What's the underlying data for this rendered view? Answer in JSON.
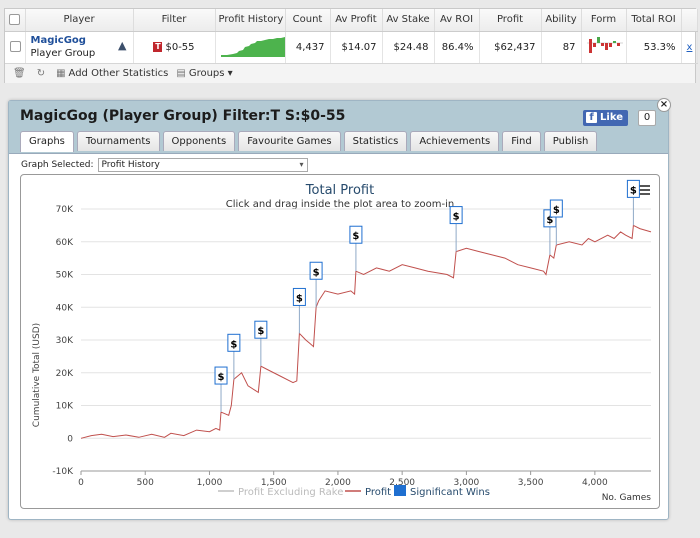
{
  "stats_table": {
    "headers": [
      "Player",
      "Filter",
      "Profit History",
      "Count",
      "Av Profit",
      "Av Stake",
      "Av ROI",
      "Profit",
      "Ability",
      "Form",
      "Total ROI"
    ],
    "row": {
      "player_name": "MagicGog",
      "player_type": "Player Group",
      "filter": "$0-55",
      "filter_badge": "T",
      "count": "4,437",
      "av_profit": "$14.07",
      "av_stake": "$24.48",
      "av_roi": "86.4%",
      "profit": "$62,437",
      "ability": "87",
      "total_roi": "53.3%",
      "remove": "x"
    },
    "toolbar": {
      "add_stats": "Add Other Statistics",
      "groups": "Groups"
    },
    "colors": {
      "sparkline": "#4db34d",
      "form_pos": "#4aa84a",
      "form_neg": "#cc3333"
    }
  },
  "panel": {
    "title": "MagicGog (Player Group) Filter:T S:$0-55",
    "close": "×",
    "fb_like": "Like",
    "fb_count": "0",
    "tabs": [
      "Graphs",
      "Tournaments",
      "Opponents",
      "Favourite Games",
      "Statistics",
      "Achievements",
      "Find",
      "Publish"
    ],
    "active_tab": "Graphs",
    "graph_select_label": "Graph Selected:",
    "graph_select_value": "Profit History"
  },
  "chart_data": {
    "type": "line",
    "title": "Total Profit",
    "subtitle": "Click and drag inside the plot area to zoom-in",
    "ylabel": "Cumulative Total (USD)",
    "xlabel": "No. Games",
    "ylim": [
      -10000,
      70000
    ],
    "xlim": [
      0,
      4437
    ],
    "y_ticks": [
      -10000,
      0,
      10000,
      20000,
      30000,
      40000,
      50000,
      60000,
      70000
    ],
    "y_tick_labels": [
      "-10K",
      "0",
      "10K",
      "20K",
      "30K",
      "40K",
      "50K",
      "60K",
      "70K"
    ],
    "x_ticks": [
      0,
      500,
      1000,
      1500,
      2000,
      2500,
      3000,
      3500,
      4000
    ],
    "x_tick_labels": [
      "0",
      "500",
      "1,000",
      "1,500",
      "2,000",
      "2,500",
      "3,000",
      "3,500",
      "4,000"
    ],
    "legend": [
      "Profit Excluding Rake",
      "Profit",
      "Significant Wins"
    ],
    "legend_position": "bottom",
    "grid": true,
    "colors": {
      "profit": "#c0504d",
      "excl_rake": "#cfcfcf",
      "sig_win": "#1f6fd0"
    },
    "series": [
      {
        "name": "Profit",
        "x": [
          0,
          80,
          160,
          250,
          350,
          450,
          550,
          650,
          700,
          800,
          900,
          1000,
          1050,
          1080,
          1090,
          1150,
          1170,
          1190,
          1250,
          1300,
          1380,
          1400,
          1450,
          1550,
          1650,
          1680,
          1700,
          1750,
          1780,
          1810,
          1830,
          1850,
          1900,
          2000,
          2100,
          2130,
          2140,
          2200,
          2300,
          2400,
          2500,
          2600,
          2700,
          2850,
          2900,
          2920,
          3000,
          3100,
          3200,
          3300,
          3400,
          3500,
          3600,
          3620,
          3650,
          3680,
          3700,
          3800,
          3900,
          3950,
          4000,
          4100,
          4150,
          4200,
          4240,
          4290,
          4300,
          4350,
          4437
        ],
        "y": [
          0,
          800,
          1200,
          500,
          1000,
          300,
          1200,
          300,
          1500,
          800,
          2500,
          2000,
          3000,
          2500,
          8000,
          7000,
          10000,
          18000,
          20000,
          16000,
          14000,
          22000,
          21000,
          19000,
          17000,
          17500,
          32000,
          30000,
          29000,
          28000,
          40000,
          42000,
          45000,
          44000,
          45000,
          44000,
          51000,
          50000,
          52000,
          51000,
          53000,
          52000,
          51000,
          50000,
          49000,
          57000,
          58000,
          57000,
          56000,
          55000,
          53000,
          52000,
          51000,
          50000,
          56000,
          55000,
          59000,
          60000,
          59000,
          61000,
          60000,
          62000,
          61000,
          63000,
          62000,
          61000,
          65000,
          64000,
          63000
        ]
      }
    ],
    "significant_wins": [
      {
        "x": 1090,
        "label": "$"
      },
      {
        "x": 1190,
        "label": "$"
      },
      {
        "x": 1400,
        "label": "$"
      },
      {
        "x": 1700,
        "label": "$"
      },
      {
        "x": 1830,
        "label": "$"
      },
      {
        "x": 2140,
        "label": "$"
      },
      {
        "x": 2920,
        "label": "$"
      },
      {
        "x": 3650,
        "label": "$"
      },
      {
        "x": 3700,
        "label": "$"
      },
      {
        "x": 4300,
        "label": "$"
      }
    ]
  }
}
